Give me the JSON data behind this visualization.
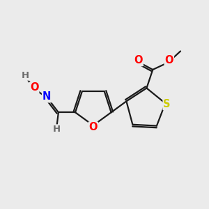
{
  "background_color": "#ebebeb",
  "bond_color": "#1a1a1a",
  "bond_width": 1.6,
  "atom_colors": {
    "O": "#ff0000",
    "S": "#cccc00",
    "N": "#0000ff",
    "H": "#6a6a6a",
    "C": "#1a1a1a"
  },
  "font_size": 9.5,
  "fig_width": 3.0,
  "fig_height": 3.0,
  "dpi": 100
}
